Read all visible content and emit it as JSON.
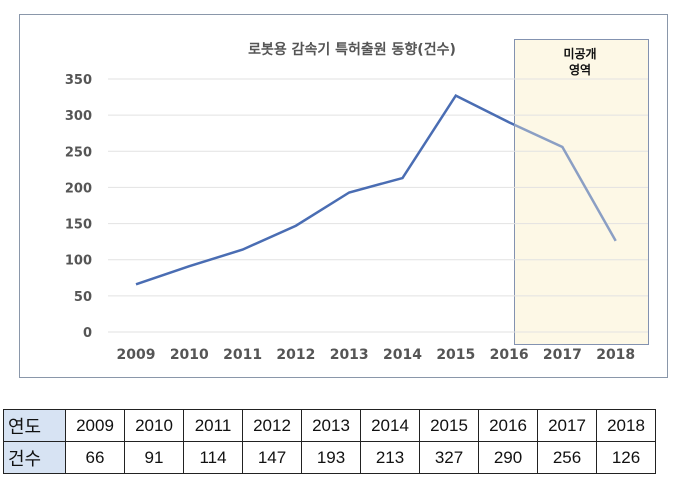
{
  "chart_data": {
    "type": "line",
    "title": "로봇용 감속기 특허출원 동향(건수)",
    "categories": [
      "2009",
      "2010",
      "2011",
      "2012",
      "2013",
      "2014",
      "2015",
      "2016",
      "2017",
      "2018"
    ],
    "values": [
      66,
      91,
      114,
      147,
      193,
      213,
      327,
      290,
      256,
      126
    ],
    "ylim": [
      0,
      350
    ],
    "yticks": [
      0,
      50,
      100,
      150,
      200,
      250,
      300,
      350
    ],
    "grid": true,
    "line_color": "#4a6db3",
    "shaded_line_color": "#8b9fc4",
    "annotation": {
      "text_line1": "미공개",
      "text_line2": "영역",
      "from": "2016",
      "to": "2018",
      "fill": "#fdf8e6"
    }
  },
  "table": {
    "year_header": "연도",
    "count_header": "건수",
    "years": [
      "2009",
      "2010",
      "2011",
      "2012",
      "2013",
      "2014",
      "2015",
      "2016",
      "2017",
      "2018"
    ],
    "counts": [
      "66",
      "91",
      "114",
      "147",
      "193",
      "213",
      "327",
      "290",
      "256",
      "126"
    ]
  }
}
